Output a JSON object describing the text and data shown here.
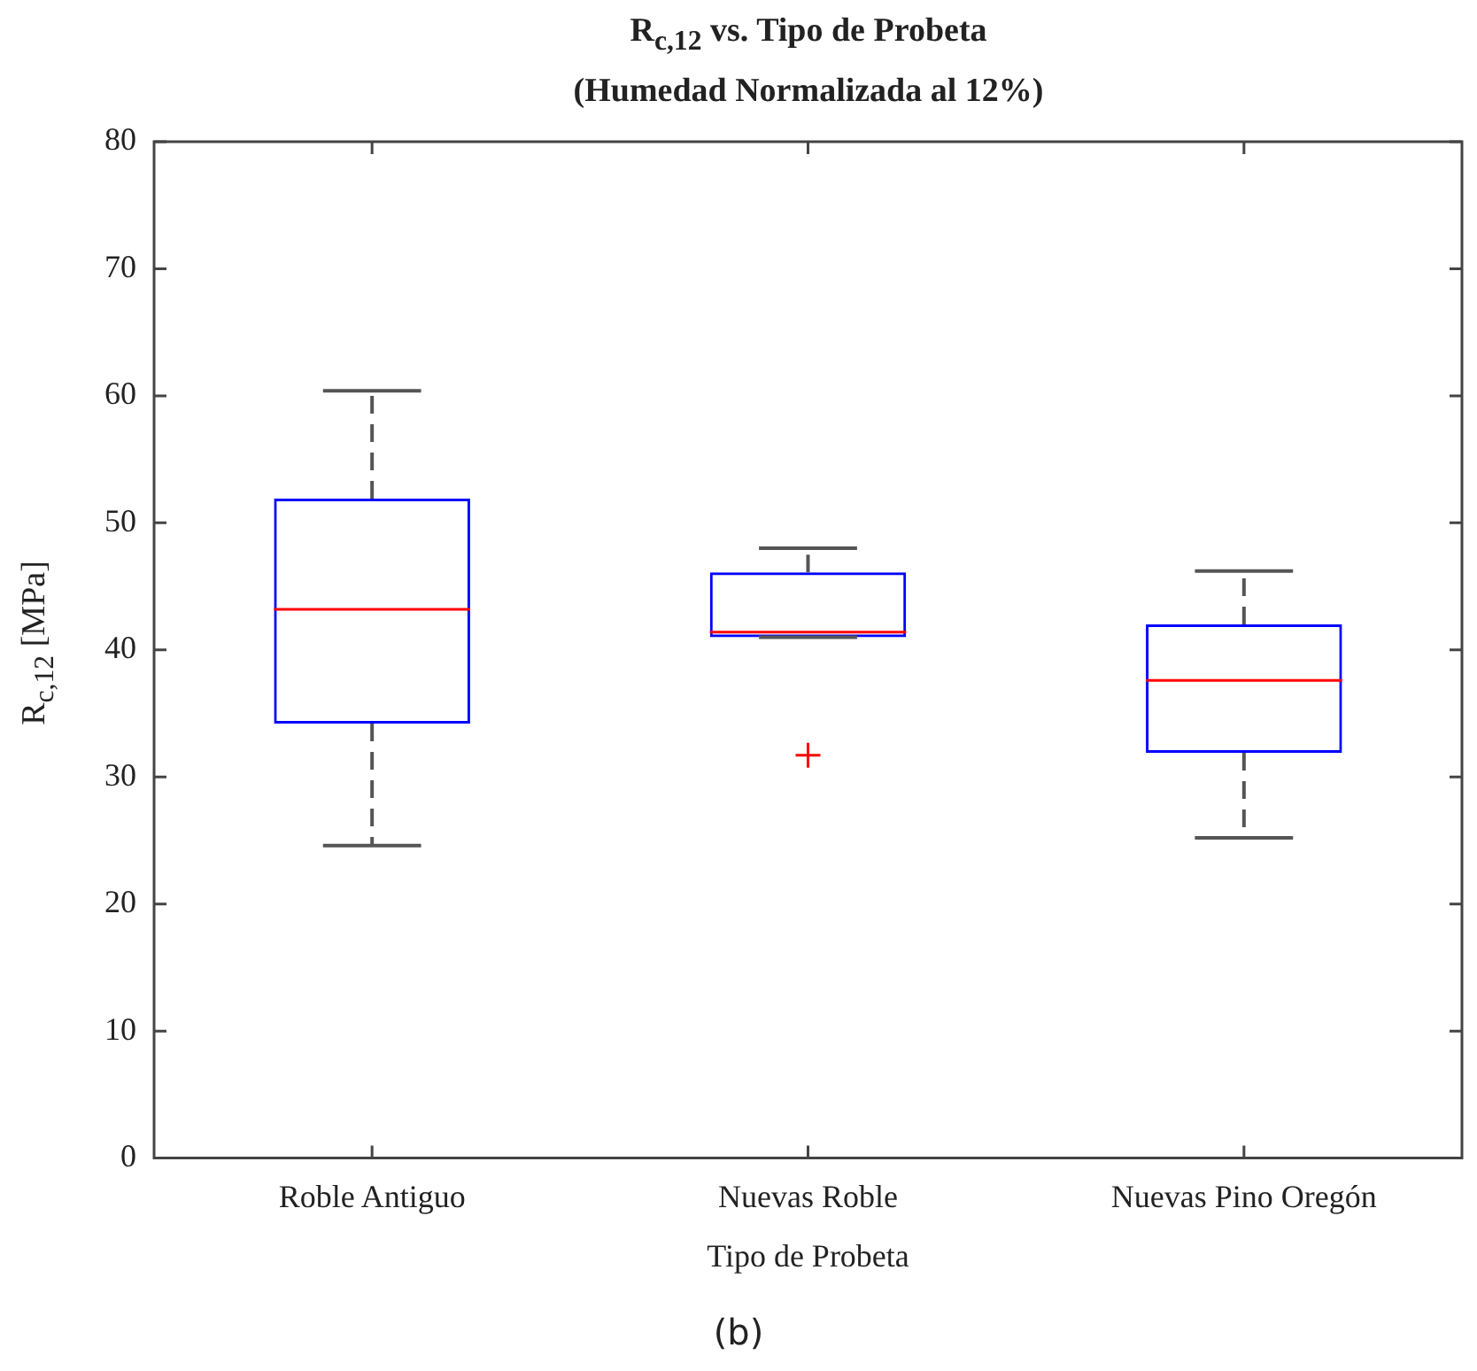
{
  "chart_data": {
    "type": "box",
    "title": "R$_{c,12}$ vs. Tipo de Probeta",
    "subtitle": "(Humedad Normalizada al 12%)",
    "xlabel": "Tipo de Probeta",
    "ylabel": "R$_{c,12}$ [MPa]",
    "annotations": [
      "(b)"
    ],
    "categories": [
      "Roble Antiguo",
      "Nuevas Roble",
      "Nuevas Pino Oregón"
    ],
    "series": [
      {
        "color": "#0000ff",
        "boxes": [
          {
            "low": 24.6,
            "q1": 34.2,
            "median": 43.2,
            "q3": 51.9,
            "high": 60.4
          },
          {
            "low": 41.0,
            "q1": 41.0,
            "median": 41.4,
            "q3": 46.1,
            "high": 48.0,
            "outliers": [
              31.7
            ]
          },
          {
            "low": 25.2,
            "q1": 31.9,
            "median": 37.6,
            "q3": 42.0,
            "high": 46.2
          }
        ]
      }
    ],
    "ylim": [
      0,
      80
    ],
    "yticks": [
      0,
      10,
      20,
      30,
      40,
      50,
      60,
      70,
      80
    ],
    "grid": false,
    "legend": false
  }
}
